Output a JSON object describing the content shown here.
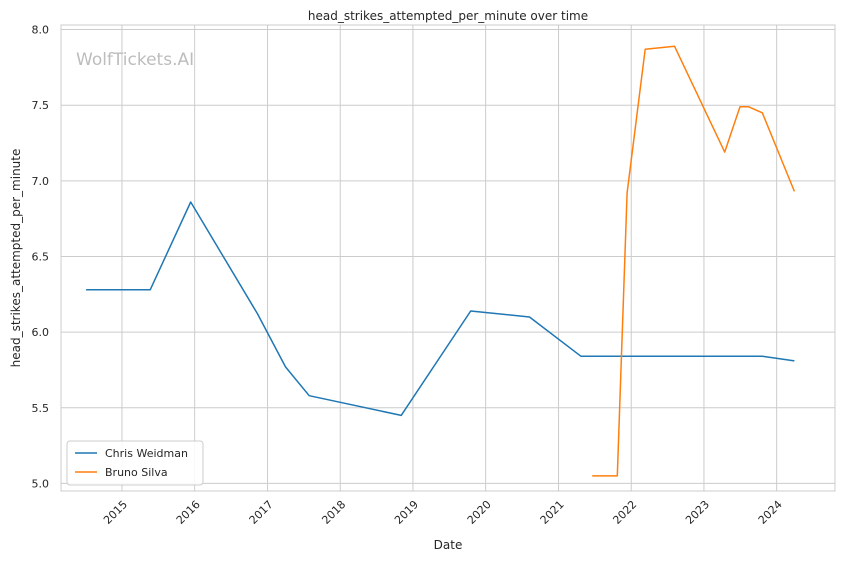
{
  "chart_data": {
    "type": "line",
    "title": "head_strikes_attempted_per_minute over time",
    "xlabel": "Date",
    "ylabel": "head_strikes_attempted_per_minute",
    "watermark": "WolfTickets.AI",
    "x_ticks": [
      "2015",
      "2016",
      "2017",
      "2018",
      "2019",
      "2020",
      "2021",
      "2022",
      "2023",
      "2024"
    ],
    "y_ticks": [
      "5.0",
      "5.5",
      "6.0",
      "6.5",
      "7.0",
      "7.5",
      "8.0"
    ],
    "ylim": [
      4.95,
      8.03
    ],
    "xlim": [
      "2014-03-01",
      "2024-10-20"
    ],
    "grid": true,
    "legend_position": "lower-left",
    "series": [
      {
        "name": "Chris Weidman",
        "color": "#1f77b4",
        "points": [
          [
            "2014-07-05",
            6.28
          ],
          [
            "2015-05-23",
            6.28
          ],
          [
            "2015-12-12",
            6.86
          ],
          [
            "2016-11-12",
            6.12
          ],
          [
            "2017-04-01",
            5.77
          ],
          [
            "2017-07-29",
            5.58
          ],
          [
            "2018-11-03",
            5.45
          ],
          [
            "2019-10-18",
            6.14
          ],
          [
            "2020-08-08",
            6.1
          ],
          [
            "2021-04-24",
            5.84
          ],
          [
            "2023-07-01",
            5.84
          ],
          [
            "2023-08-26",
            5.84
          ],
          [
            "2023-10-21",
            5.84
          ],
          [
            "2024-03-30",
            5.81
          ]
        ]
      },
      {
        "name": "Bruno Silva",
        "color": "#ff7f0e",
        "points": [
          [
            "2021-06-19",
            5.05
          ],
          [
            "2021-10-23",
            5.05
          ],
          [
            "2021-12-11",
            6.92
          ],
          [
            "2022-03-12",
            7.87
          ],
          [
            "2022-08-06",
            7.89
          ],
          [
            "2023-04-15",
            7.19
          ],
          [
            "2023-07-01",
            7.49
          ],
          [
            "2023-08-12",
            7.49
          ],
          [
            "2023-10-21",
            7.45
          ],
          [
            "2024-03-30",
            6.93
          ]
        ]
      }
    ]
  }
}
